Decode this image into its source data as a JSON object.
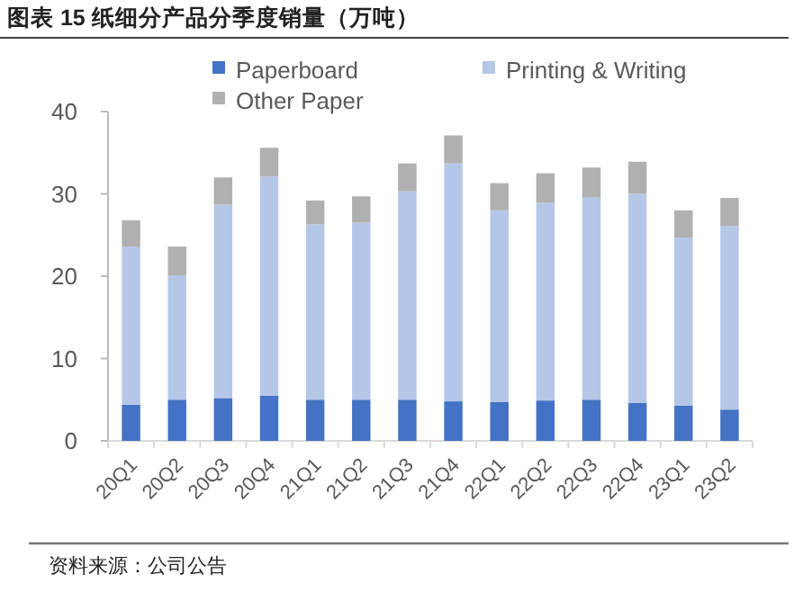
{
  "chart_data": {
    "type": "bar",
    "title": "图表 15 纸细分产品分季度销量（万吨）",
    "annotations": [
      "资料来源：公司公告"
    ],
    "categories": [
      "20Q1",
      "20Q2",
      "20Q3",
      "20Q4",
      "21Q1",
      "21Q2",
      "21Q3",
      "21Q4",
      "22Q1",
      "22Q2",
      "22Q3",
      "22Q4",
      "23Q1",
      "23Q2"
    ],
    "stacked": true,
    "legend": "top",
    "grid": false,
    "ylim": [
      0,
      40
    ],
    "yticks": [
      0,
      10,
      20,
      30,
      40
    ],
    "series": [
      {
        "name": "Paperboard",
        "color": "#4472c4",
        "values": [
          4.4,
          5.0,
          5.2,
          5.5,
          5.0,
          5.0,
          5.0,
          4.8,
          4.7,
          4.9,
          5.0,
          4.6,
          4.3,
          3.8
        ]
      },
      {
        "name": "Printing & Writing",
        "color": "#b4c7e7",
        "values": [
          19.2,
          15.1,
          23.5,
          26.6,
          21.3,
          21.5,
          25.3,
          28.9,
          23.3,
          24.0,
          24.6,
          25.4,
          20.4,
          22.3
        ]
      },
      {
        "name": "Other Paper",
        "color": "#b0b0b0",
        "values": [
          3.2,
          3.5,
          3.3,
          3.5,
          2.9,
          3.2,
          3.4,
          3.4,
          3.3,
          3.6,
          3.6,
          3.9,
          3.3,
          3.4
        ]
      }
    ]
  }
}
